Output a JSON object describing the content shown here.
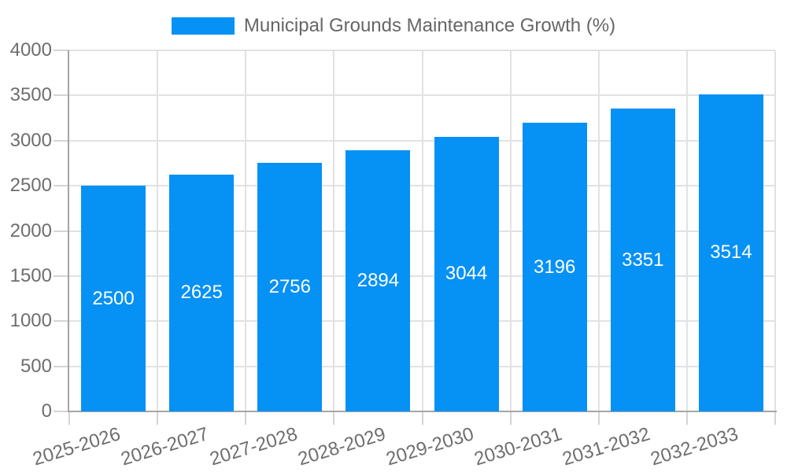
{
  "chart_data": {
    "type": "bar",
    "title": "Municipal Grounds Maintenance Growth (%)",
    "legend_position": "top-center",
    "categories": [
      "2025-2026",
      "2026-2027",
      "2027-2028",
      "2028-2029",
      "2029-2030",
      "2030-2031",
      "2031-2032",
      "2032-2033"
    ],
    "series": [
      {
        "name": "Municipal Grounds Maintenance Growth (%)",
        "values": [
          2500,
          2625,
          2756,
          2894,
          3044,
          3196,
          3351,
          3514
        ]
      }
    ],
    "value_labels": [
      2500,
      2625,
      2756,
      2894,
      3044,
      3196,
      3351,
      3514
    ],
    "xlabel": "",
    "ylabel": "",
    "ylim": [
      0,
      4000
    ],
    "yticks": [
      0,
      500,
      1000,
      1500,
      2000,
      2500,
      3000,
      3500,
      4000
    ],
    "grid": "on",
    "colors": {
      "bar": "#0691f5",
      "legend_text": "#666666",
      "axis_text": "#6e6e6e",
      "value_label": "#ffffff",
      "grid_line": "#e2e2e2",
      "tick_line": "#d4d4d4",
      "axis_line": "#a5a5a5",
      "background": "#ffffff"
    }
  }
}
